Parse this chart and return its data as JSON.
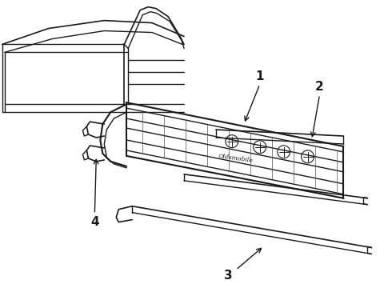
{
  "background_color": "#ffffff",
  "line_color": "#1a1a1a",
  "figsize": [
    4.9,
    3.6
  ],
  "dpi": 100,
  "label_fontsize": 11
}
